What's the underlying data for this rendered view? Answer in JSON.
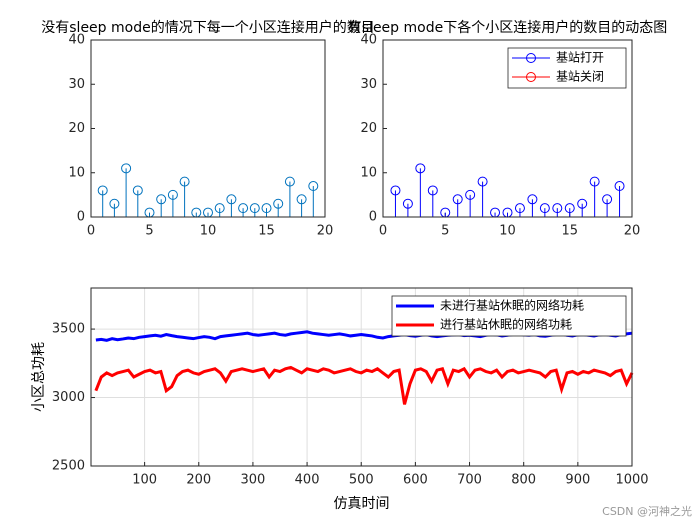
{
  "chart_data": [
    {
      "type": "stem",
      "title": "没有sleep mode的情况下每一个小区连接用户的数目",
      "x": [
        1,
        2,
        3,
        4,
        5,
        6,
        7,
        8,
        9,
        10,
        11,
        12,
        13,
        14,
        15,
        16,
        17,
        18,
        19
      ],
      "series": [
        {
          "color": "#0072bd",
          "values": [
            6,
            3,
            11,
            6,
            1,
            4,
            5,
            8,
            1,
            1,
            2,
            4,
            2,
            2,
            2,
            3,
            8,
            4,
            7
          ]
        }
      ],
      "xlim": [
        0,
        20
      ],
      "xticks": [
        0,
        5,
        10,
        15,
        20
      ],
      "ylim": [
        0,
        40
      ],
      "yticks": [
        0,
        10,
        20,
        30,
        40
      ],
      "grid": false
    },
    {
      "type": "stem",
      "title": "有sleep mode下各个小区连接用户的数目的动态图",
      "x": [
        1,
        2,
        3,
        4,
        5,
        6,
        7,
        8,
        9,
        10,
        11,
        12,
        13,
        14,
        15,
        16,
        17,
        18,
        19
      ],
      "series": [
        {
          "name": "基站打开",
          "color": "#0000ff",
          "values": [
            6,
            3,
            11,
            6,
            1,
            4,
            5,
            8,
            1,
            1,
            2,
            4,
            2,
            2,
            2,
            3,
            8,
            4,
            7
          ]
        },
        {
          "name": "基站关闭",
          "color": "#ff0000",
          "values": [
            null,
            null,
            null,
            null,
            null,
            null,
            null,
            null,
            null,
            null,
            null,
            null,
            null,
            null,
            null,
            null,
            null,
            null,
            null
          ]
        }
      ],
      "xlim": [
        0,
        20
      ],
      "xticks": [
        0,
        5,
        10,
        15,
        20
      ],
      "ylim": [
        0,
        40
      ],
      "yticks": [
        0,
        10,
        20,
        30,
        40
      ],
      "grid": false,
      "legend": "northeast"
    },
    {
      "type": "line",
      "xlabel": "仿真时间",
      "ylabel": "小区总功耗",
      "x": [
        10,
        20,
        30,
        40,
        50,
        60,
        70,
        80,
        90,
        100,
        110,
        120,
        130,
        140,
        150,
        160,
        170,
        180,
        190,
        200,
        210,
        220,
        230,
        240,
        250,
        260,
        270,
        280,
        290,
        300,
        310,
        320,
        330,
        340,
        350,
        360,
        370,
        380,
        390,
        400,
        410,
        420,
        430,
        440,
        450,
        460,
        470,
        480,
        490,
        500,
        510,
        520,
        530,
        540,
        550,
        560,
        570,
        580,
        590,
        600,
        610,
        620,
        630,
        640,
        650,
        660,
        670,
        680,
        690,
        700,
        710,
        720,
        730,
        740,
        750,
        760,
        770,
        780,
        790,
        800,
        810,
        820,
        830,
        840,
        850,
        860,
        870,
        880,
        890,
        900,
        910,
        920,
        930,
        940,
        950,
        960,
        970,
        980,
        990,
        1000
      ],
      "series": [
        {
          "name": "未进行基站休眠的网络功耗",
          "color": "#0000ff",
          "values": [
            3420,
            3425,
            3418,
            3430,
            3422,
            3428,
            3435,
            3430,
            3440,
            3445,
            3450,
            3455,
            3448,
            3460,
            3452,
            3445,
            3440,
            3435,
            3430,
            3438,
            3445,
            3440,
            3430,
            3445,
            3450,
            3455,
            3460,
            3465,
            3470,
            3460,
            3455,
            3460,
            3465,
            3470,
            3460,
            3455,
            3465,
            3470,
            3475,
            3480,
            3470,
            3465,
            3460,
            3455,
            3460,
            3465,
            3458,
            3450,
            3455,
            3460,
            3455,
            3450,
            3440,
            3435,
            3445,
            3450,
            3455,
            3460,
            3452,
            3448,
            3455,
            3460,
            3450,
            3445,
            3450,
            3455,
            3458,
            3460,
            3452,
            3455,
            3450,
            3445,
            3455,
            3460,
            3458,
            3450,
            3455,
            3460,
            3465,
            3458,
            3455,
            3460,
            3450,
            3448,
            3455,
            3460,
            3465,
            3455,
            3450,
            3458,
            3460,
            3455,
            3450,
            3458,
            3462,
            3455,
            3450,
            3460,
            3465,
            3470
          ]
        },
        {
          "name": "进行基站休眠的网络功耗",
          "color": "#ff0000",
          "values": [
            3050,
            3150,
            3180,
            3160,
            3180,
            3190,
            3200,
            3150,
            3170,
            3190,
            3200,
            3180,
            3190,
            3050,
            3080,
            3160,
            3190,
            3200,
            3180,
            3170,
            3190,
            3200,
            3210,
            3180,
            3120,
            3190,
            3200,
            3210,
            3200,
            3190,
            3200,
            3210,
            3150,
            3200,
            3190,
            3210,
            3220,
            3200,
            3180,
            3210,
            3200,
            3190,
            3210,
            3200,
            3180,
            3190,
            3200,
            3210,
            3190,
            3180,
            3200,
            3190,
            3210,
            3180,
            3150,
            3190,
            3200,
            2950,
            3100,
            3200,
            3210,
            3190,
            3120,
            3200,
            3210,
            3100,
            3200,
            3190,
            3210,
            3150,
            3200,
            3210,
            3190,
            3180,
            3200,
            3150,
            3190,
            3200,
            3180,
            3190,
            3200,
            3190,
            3180,
            3150,
            3190,
            3200,
            3060,
            3180,
            3190,
            3170,
            3190,
            3180,
            3200,
            3190,
            3180,
            3160,
            3190,
            3200,
            3100,
            3180
          ]
        }
      ],
      "xlim": [
        1,
        1000
      ],
      "xticks": [
        100,
        200,
        300,
        400,
        500,
        600,
        700,
        800,
        900,
        1000
      ],
      "ylim": [
        2500,
        3800
      ],
      "yticks": [
        2500,
        3000,
        3500
      ],
      "grid": true,
      "legend": "northeast"
    }
  ],
  "watermark": "CSDN @河神之光"
}
